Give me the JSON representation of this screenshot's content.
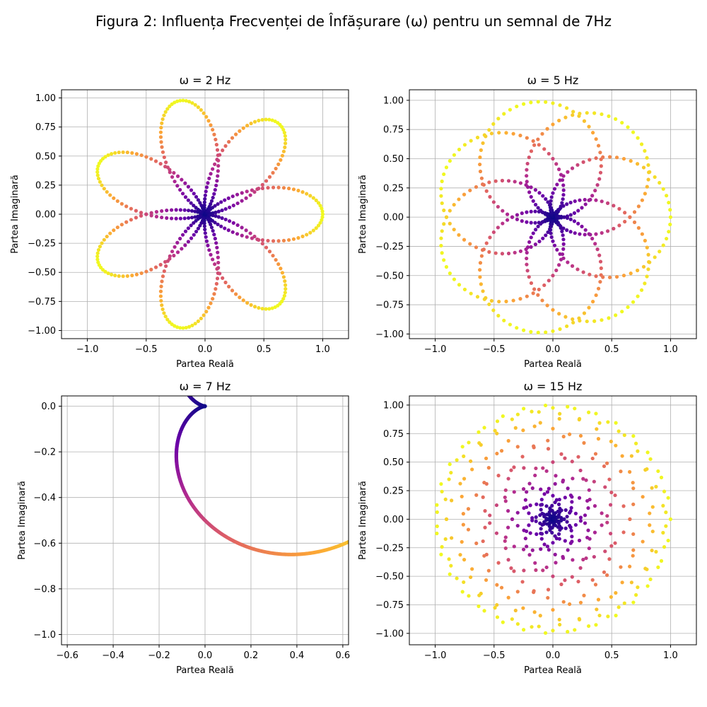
{
  "figure": {
    "title": "Figura 2: Influența Frecvenței de Înfășurare (ω) pentru un semnal de 7Hz"
  },
  "colormap": {
    "name": "plasma",
    "stops": [
      "#0d0887",
      "#6a00a8",
      "#b12a90",
      "#e16462",
      "#fca636",
      "#f0f921"
    ]
  },
  "chart_data": [
    {
      "type": "scatter",
      "title": "ω = 2 Hz",
      "xlabel": "Partea Reală",
      "ylabel": "Partea Imaginară",
      "winding_frequency_hz": 2,
      "signal_frequency_hz": 7,
      "curve": "z(t) = (1 + cos(2π·7·t))/2 · e^(-i·2π·2·t)",
      "color_by": "magnitude",
      "xlim": [
        -1.22,
        1.22
      ],
      "ylim": [
        -1.07,
        1.07
      ],
      "xticks": [
        "−1.0",
        "−0.5",
        "0.0",
        "0.5",
        "1.0"
      ],
      "yticks": [
        "−1.00",
        "−0.75",
        "−0.50",
        "−0.25",
        "0.00",
        "0.25",
        "0.50",
        "0.75",
        "1.00"
      ],
      "grid": true
    },
    {
      "type": "scatter",
      "title": "ω = 5 Hz",
      "xlabel": "Partea Reală",
      "ylabel": "Partea Imaginară",
      "winding_frequency_hz": 5,
      "signal_frequency_hz": 7,
      "curve": "z(t) = (1 + cos(2π·7·t))/2 · e^(-i·2π·5·t)",
      "color_by": "magnitude",
      "xlim": [
        -1.22,
        1.22
      ],
      "ylim": [
        -1.04,
        1.09
      ],
      "xticks": [
        "−1.0",
        "−0.5",
        "0.0",
        "0.5",
        "1.0"
      ],
      "yticks": [
        "−1.00",
        "−0.75",
        "−0.50",
        "−0.25",
        "0.00",
        "0.25",
        "0.50",
        "0.75",
        "1.00"
      ],
      "grid": true
    },
    {
      "type": "scatter",
      "title": "ω = 7 Hz",
      "xlabel": "Partea Reală",
      "ylabel": "Partea Imaginară",
      "winding_frequency_hz": 7,
      "signal_frequency_hz": 7,
      "curve": "z(t) = (1 + cos(2π·7·t))/2 · e^(-i·2π·7·t)",
      "color_by": "magnitude",
      "xlim": [
        -0.625,
        0.625
      ],
      "ylim": [
        -1.045,
        0.045
      ],
      "xticks": [
        "−0.6",
        "−0.4",
        "−0.2",
        "0.0",
        "0.2",
        "0.4",
        "0.6"
      ],
      "yticks": [
        "−1.0",
        "−0.8",
        "−0.6",
        "−0.4",
        "−0.2",
        "0.0"
      ],
      "grid": true
    },
    {
      "type": "scatter",
      "title": "ω = 15 Hz",
      "xlabel": "Partea Reală",
      "ylabel": "Partea Imaginară",
      "winding_frequency_hz": 15,
      "signal_frequency_hz": 7,
      "curve": "z(t) = (1 + cos(2π·7·t))/2 · e^(-i·2π·15·t)",
      "color_by": "magnitude",
      "xlim": [
        -1.22,
        1.22
      ],
      "ylim": [
        -1.1,
        1.08
      ],
      "xticks": [
        "−1.0",
        "−0.5",
        "0.0",
        "0.5",
        "1.0"
      ],
      "yticks": [
        "−1.00",
        "−0.75",
        "−0.50",
        "−0.25",
        "0.00",
        "0.25",
        "0.50",
        "0.75",
        "1.00"
      ],
      "grid": true
    }
  ]
}
